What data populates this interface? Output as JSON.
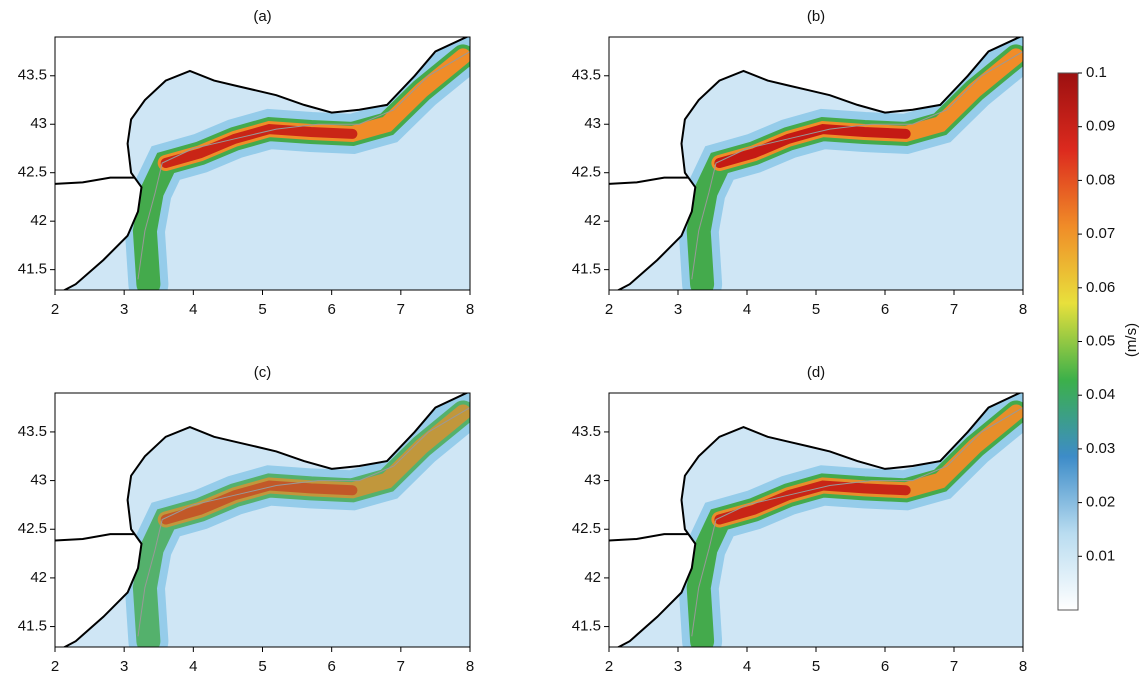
{
  "chart_data": [
    {
      "type": "map",
      "title": "(a)",
      "xlim": [
        2,
        8
      ],
      "ylim": [
        41.29,
        43.9
      ],
      "xticks": [
        2,
        3,
        4,
        5,
        6,
        7,
        8
      ],
      "yticks": [
        41.5,
        42,
        42.5,
        43,
        43.5
      ]
    },
    {
      "type": "map",
      "title": "(b)",
      "xlim": [
        2,
        8
      ],
      "ylim": [
        41.29,
        43.9
      ],
      "xticks": [
        2,
        3,
        4,
        5,
        6,
        7,
        8
      ],
      "yticks": [
        41.5,
        42,
        42.5,
        43,
        43.5
      ]
    },
    {
      "type": "map",
      "title": "(c)",
      "xlim": [
        2,
        8
      ],
      "ylim": [
        41.29,
        43.9
      ],
      "xticks": [
        2,
        3,
        4,
        5,
        6,
        7,
        8
      ],
      "yticks": [
        41.5,
        42,
        42.5,
        43,
        43.5
      ]
    },
    {
      "type": "map",
      "title": "(d)",
      "xlim": [
        2,
        8
      ],
      "ylim": [
        41.29,
        43.9
      ],
      "xticks": [
        2,
        3,
        4,
        5,
        6,
        7,
        8
      ],
      "yticks": [
        41.5,
        42,
        42.5,
        43,
        43.5
      ]
    },
    {
      "type": "colorbar",
      "label": "(m/s)",
      "lim": [
        0,
        0.1
      ],
      "ticks": [
        0.01,
        0.02,
        0.03,
        0.04,
        0.05,
        0.06,
        0.07,
        0.08,
        0.09,
        0.1
      ],
      "colors": [
        "#ffffff",
        "#b9dcf0",
        "#3d8cc8",
        "#3cb04a",
        "#e8e03c",
        "#f08c28",
        "#dc2a1e",
        "#9c1010"
      ]
    }
  ]
}
